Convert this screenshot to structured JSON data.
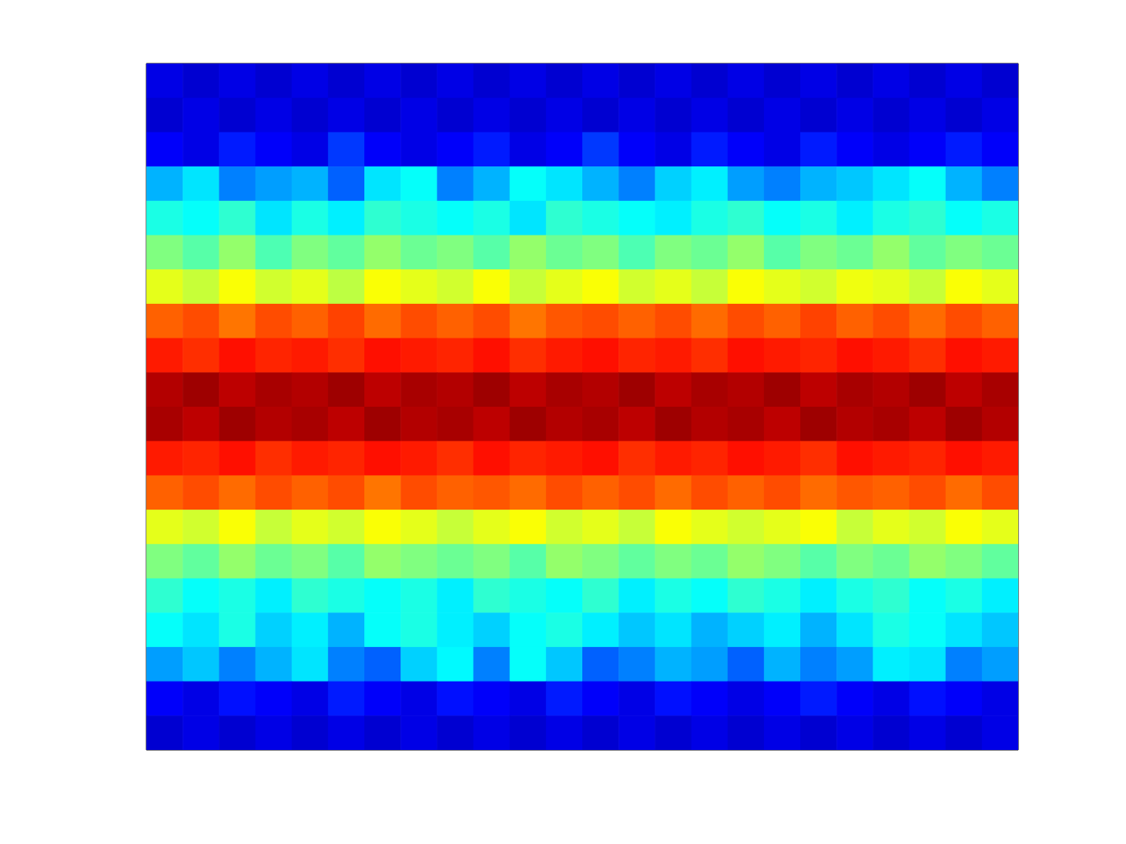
{
  "chart_data": {
    "type": "heatmap",
    "tick_labels": false,
    "xlim": [
      0,
      24
    ],
    "ylim": [
      0,
      20
    ],
    "zlim": [
      0,
      1
    ],
    "cells": [
      [
        0.1,
        0.08,
        0.1,
        0.08,
        0.1,
        0.08,
        0.1,
        0.08,
        0.1,
        0.08,
        0.1,
        0.08,
        0.1,
        0.08,
        0.1,
        0.08,
        0.1,
        0.08,
        0.1,
        0.08,
        0.1,
        0.08,
        0.1,
        0.08
      ],
      [
        0.08,
        0.1,
        0.08,
        0.1,
        0.08,
        0.1,
        0.08,
        0.1,
        0.08,
        0.1,
        0.08,
        0.1,
        0.08,
        0.1,
        0.08,
        0.1,
        0.08,
        0.1,
        0.08,
        0.1,
        0.08,
        0.1,
        0.08,
        0.1
      ],
      [
        0.12,
        0.1,
        0.15,
        0.12,
        0.1,
        0.18,
        0.12,
        0.1,
        0.12,
        0.15,
        0.1,
        0.12,
        0.18,
        0.12,
        0.1,
        0.15,
        0.12,
        0.1,
        0.15,
        0.12,
        0.1,
        0.12,
        0.15,
        0.12
      ],
      [
        0.3,
        0.35,
        0.25,
        0.28,
        0.3,
        0.22,
        0.35,
        0.38,
        0.25,
        0.3,
        0.38,
        0.35,
        0.3,
        0.25,
        0.33,
        0.36,
        0.28,
        0.25,
        0.3,
        0.32,
        0.35,
        0.38,
        0.3,
        0.25
      ],
      [
        0.4,
        0.38,
        0.42,
        0.35,
        0.4,
        0.36,
        0.42,
        0.4,
        0.38,
        0.4,
        0.35,
        0.42,
        0.4,
        0.38,
        0.36,
        0.4,
        0.42,
        0.38,
        0.4,
        0.36,
        0.4,
        0.42,
        0.38,
        0.4
      ],
      [
        0.5,
        0.46,
        0.52,
        0.45,
        0.5,
        0.47,
        0.52,
        0.48,
        0.5,
        0.46,
        0.52,
        0.48,
        0.5,
        0.45,
        0.5,
        0.48,
        0.52,
        0.46,
        0.5,
        0.48,
        0.52,
        0.47,
        0.5,
        0.48
      ],
      [
        0.6,
        0.57,
        0.62,
        0.58,
        0.6,
        0.56,
        0.62,
        0.6,
        0.58,
        0.62,
        0.57,
        0.6,
        0.62,
        0.58,
        0.6,
        0.57,
        0.62,
        0.6,
        0.58,
        0.61,
        0.6,
        0.57,
        0.62,
        0.6
      ],
      [
        0.78,
        0.8,
        0.76,
        0.8,
        0.78,
        0.81,
        0.77,
        0.8,
        0.78,
        0.8,
        0.76,
        0.79,
        0.8,
        0.78,
        0.8,
        0.77,
        0.8,
        0.78,
        0.81,
        0.78,
        0.8,
        0.77,
        0.8,
        0.78
      ],
      [
        0.85,
        0.83,
        0.86,
        0.84,
        0.85,
        0.83,
        0.86,
        0.85,
        0.84,
        0.86,
        0.83,
        0.85,
        0.86,
        0.84,
        0.85,
        0.83,
        0.86,
        0.85,
        0.84,
        0.86,
        0.85,
        0.83,
        0.86,
        0.85
      ],
      [
        0.95,
        0.97,
        0.94,
        0.96,
        0.95,
        0.97,
        0.94,
        0.96,
        0.95,
        0.97,
        0.94,
        0.96,
        0.95,
        0.97,
        0.94,
        0.96,
        0.95,
        0.97,
        0.94,
        0.96,
        0.95,
        0.97,
        0.94,
        0.96
      ],
      [
        0.96,
        0.94,
        0.97,
        0.95,
        0.96,
        0.94,
        0.97,
        0.95,
        0.96,
        0.94,
        0.97,
        0.95,
        0.96,
        0.94,
        0.97,
        0.95,
        0.96,
        0.94,
        0.97,
        0.95,
        0.96,
        0.94,
        0.97,
        0.95
      ],
      [
        0.85,
        0.84,
        0.86,
        0.83,
        0.85,
        0.84,
        0.86,
        0.85,
        0.83,
        0.86,
        0.84,
        0.85,
        0.86,
        0.83,
        0.85,
        0.84,
        0.86,
        0.85,
        0.83,
        0.86,
        0.85,
        0.84,
        0.86,
        0.85
      ],
      [
        0.78,
        0.8,
        0.77,
        0.8,
        0.78,
        0.8,
        0.76,
        0.8,
        0.78,
        0.79,
        0.77,
        0.8,
        0.78,
        0.8,
        0.77,
        0.8,
        0.78,
        0.8,
        0.77,
        0.79,
        0.78,
        0.8,
        0.77,
        0.8
      ],
      [
        0.6,
        0.58,
        0.62,
        0.57,
        0.6,
        0.58,
        0.62,
        0.6,
        0.57,
        0.6,
        0.62,
        0.58,
        0.6,
        0.57,
        0.62,
        0.6,
        0.58,
        0.6,
        0.62,
        0.57,
        0.6,
        0.58,
        0.62,
        0.6
      ],
      [
        0.5,
        0.47,
        0.52,
        0.48,
        0.5,
        0.46,
        0.52,
        0.5,
        0.48,
        0.5,
        0.46,
        0.52,
        0.5,
        0.47,
        0.5,
        0.48,
        0.52,
        0.5,
        0.46,
        0.5,
        0.48,
        0.52,
        0.5,
        0.47
      ],
      [
        0.42,
        0.38,
        0.4,
        0.36,
        0.42,
        0.4,
        0.38,
        0.4,
        0.36,
        0.42,
        0.4,
        0.38,
        0.42,
        0.36,
        0.4,
        0.38,
        0.42,
        0.4,
        0.36,
        0.4,
        0.42,
        0.38,
        0.4,
        0.36
      ],
      [
        0.38,
        0.35,
        0.4,
        0.33,
        0.36,
        0.3,
        0.38,
        0.4,
        0.36,
        0.33,
        0.38,
        0.4,
        0.36,
        0.32,
        0.35,
        0.3,
        0.33,
        0.36,
        0.3,
        0.35,
        0.4,
        0.38,
        0.35,
        0.32
      ],
      [
        0.28,
        0.32,
        0.25,
        0.3,
        0.35,
        0.25,
        0.22,
        0.33,
        0.37,
        0.25,
        0.38,
        0.32,
        0.22,
        0.25,
        0.3,
        0.28,
        0.22,
        0.3,
        0.25,
        0.28,
        0.36,
        0.35,
        0.25,
        0.28
      ],
      [
        0.12,
        0.1,
        0.14,
        0.12,
        0.1,
        0.15,
        0.12,
        0.1,
        0.14,
        0.12,
        0.1,
        0.15,
        0.12,
        0.1,
        0.14,
        0.12,
        0.1,
        0.12,
        0.15,
        0.12,
        0.1,
        0.14,
        0.12,
        0.1
      ],
      [
        0.08,
        0.1,
        0.08,
        0.1,
        0.08,
        0.1,
        0.08,
        0.1,
        0.08,
        0.1,
        0.08,
        0.1,
        0.08,
        0.1,
        0.08,
        0.1,
        0.08,
        0.1,
        0.08,
        0.1,
        0.08,
        0.1,
        0.08,
        0.1
      ]
    ]
  }
}
